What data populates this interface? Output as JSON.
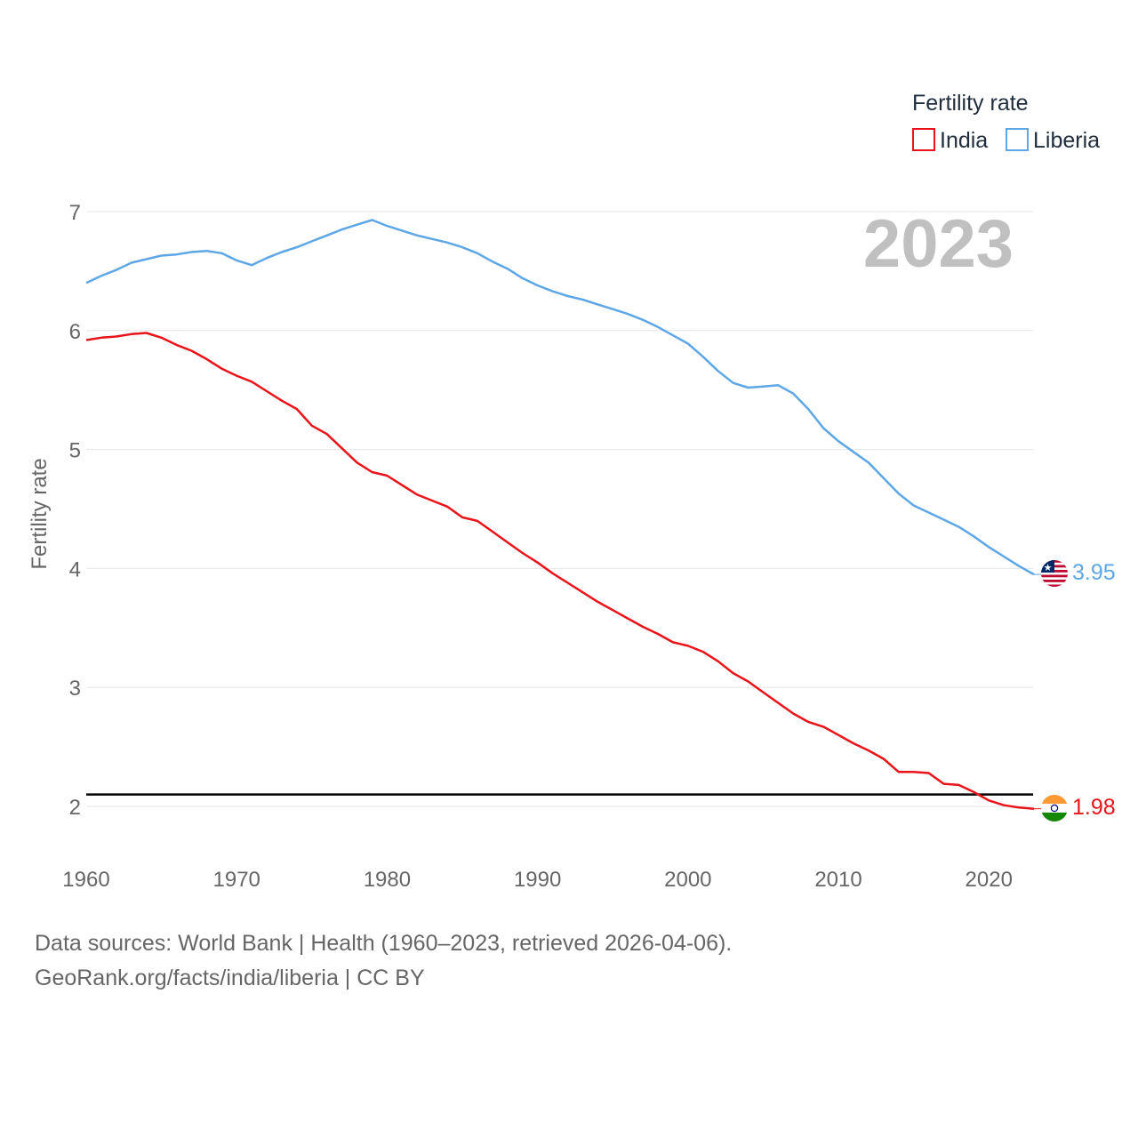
{
  "chart_data": {
    "type": "line",
    "title": "",
    "year_label": "2023",
    "xlabel": "",
    "ylabel": "Fertility rate",
    "xlim": [
      1960,
      2023
    ],
    "ylim": [
      1.6,
      7.2
    ],
    "x_ticks": [
      "1960",
      "1970",
      "1980",
      "1990",
      "2000",
      "2010",
      "2020"
    ],
    "y_ticks": [
      "2",
      "3",
      "4",
      "5",
      "6",
      "7"
    ],
    "reference_line": 2.1,
    "legend": {
      "title": "Fertility rate",
      "position": "top-right"
    },
    "x": [
      1960,
      1961,
      1962,
      1963,
      1964,
      1965,
      1966,
      1967,
      1968,
      1969,
      1970,
      1971,
      1972,
      1973,
      1974,
      1975,
      1976,
      1977,
      1978,
      1979,
      1980,
      1981,
      1982,
      1983,
      1984,
      1985,
      1986,
      1987,
      1988,
      1989,
      1990,
      1991,
      1992,
      1993,
      1994,
      1995,
      1996,
      1997,
      1998,
      1999,
      2000,
      2001,
      2002,
      2003,
      2004,
      2005,
      2006,
      2007,
      2008,
      2009,
      2010,
      2011,
      2012,
      2013,
      2014,
      2015,
      2016,
      2017,
      2018,
      2019,
      2020,
      2021,
      2022,
      2023
    ],
    "series": [
      {
        "name": "India",
        "color": "#e8141a",
        "end_value": "1.98",
        "values": [
          5.92,
          5.94,
          5.95,
          5.97,
          5.98,
          5.94,
          5.88,
          5.83,
          5.76,
          5.68,
          5.62,
          5.57,
          5.49,
          5.41,
          5.34,
          5.2,
          5.13,
          5.01,
          4.89,
          4.81,
          4.78,
          4.7,
          4.62,
          4.57,
          4.52,
          4.43,
          4.4,
          4.31,
          4.22,
          4.13,
          4.05,
          3.96,
          3.88,
          3.8,
          3.72,
          3.65,
          3.58,
          3.51,
          3.45,
          3.38,
          3.35,
          3.3,
          3.22,
          3.12,
          3.05,
          2.96,
          2.87,
          2.78,
          2.71,
          2.67,
          2.6,
          2.53,
          2.47,
          2.4,
          2.29,
          2.29,
          2.28,
          2.19,
          2.18,
          2.12,
          2.05,
          2.01,
          1.99,
          1.98
        ]
      },
      {
        "name": "Liberia",
        "color": "#5ea7e6",
        "end_value": "3.95",
        "values": [
          6.4,
          6.46,
          6.51,
          6.57,
          6.6,
          6.63,
          6.64,
          6.66,
          6.67,
          6.65,
          6.59,
          6.55,
          6.61,
          6.66,
          6.7,
          6.75,
          6.8,
          6.85,
          6.89,
          6.93,
          6.88,
          6.84,
          6.8,
          6.77,
          6.74,
          6.7,
          6.65,
          6.58,
          6.52,
          6.44,
          6.38,
          6.33,
          6.29,
          6.26,
          6.22,
          6.18,
          6.14,
          6.09,
          6.03,
          5.96,
          5.89,
          5.78,
          5.66,
          5.56,
          5.52,
          5.53,
          5.54,
          5.47,
          5.34,
          5.18,
          5.07,
          4.98,
          4.89,
          4.76,
          4.63,
          4.53,
          4.47,
          4.41,
          4.35,
          4.27,
          4.18,
          4.1,
          4.02,
          3.95
        ]
      }
    ]
  },
  "footer": {
    "line1": "Data sources: World Bank | Health (1960–2023, retrieved 2026-04-06).",
    "line2": "GeoRank.org/facts/india/liberia | CC BY"
  }
}
